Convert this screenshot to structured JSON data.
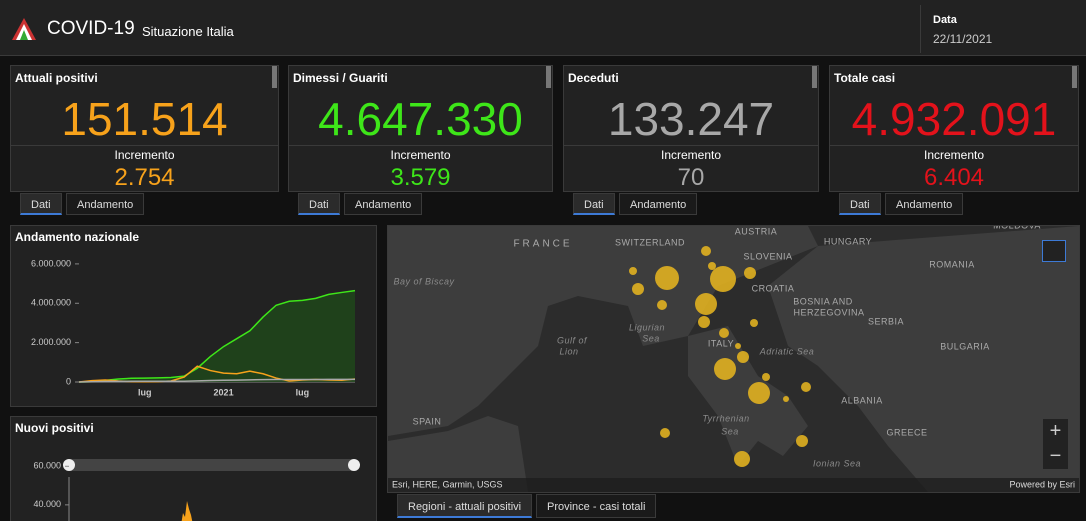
{
  "header": {
    "title": "COVID-19",
    "subtitle": "Situazione Italia",
    "date_label": "Data",
    "date": "22/11/2021"
  },
  "cards": [
    {
      "title": "Attuali positivi",
      "value": "151.514",
      "increment_label": "Incremento",
      "increment": "2.754",
      "color": "#f7a21b",
      "tabs": [
        "Dati",
        "Andamento"
      ]
    },
    {
      "title": "Dimessi / Guariti",
      "value": "4.647.330",
      "increment_label": "Incremento",
      "increment": "3.579",
      "color": "#3ee619",
      "tabs": [
        "Dati",
        "Andamento"
      ]
    },
    {
      "title": "Deceduti",
      "value": "133.247",
      "increment_label": "Incremento",
      "increment": "70",
      "color": "#a8a8a8",
      "tabs": [
        "Dati",
        "Andamento"
      ]
    },
    {
      "title": "Totale casi",
      "value": "4.932.091",
      "increment_label": "Incremento",
      "increment": "6.404",
      "color": "#e3121b",
      "tabs": [
        "Dati",
        "Andamento"
      ]
    }
  ],
  "chart_data": [
    {
      "type": "line",
      "title": "Andamento nazionale",
      "categories": [
        null,
        null,
        null,
        null,
        null,
        "lug",
        null,
        null,
        null,
        null,
        null,
        "2021",
        null,
        null,
        null,
        null,
        null,
        "lug",
        null,
        null,
        null,
        null
      ],
      "ylim": [
        0,
        6300000
      ],
      "yticks": [
        {
          "value": 0,
          "label": "0"
        },
        {
          "value": 2000000,
          "label": "2.000.000"
        },
        {
          "value": 4000000,
          "label": "4.000.000"
        },
        {
          "value": 6000000,
          "label": "6.000.000"
        }
      ],
      "series": [
        {
          "color": "#3ee619",
          "fill": "#1f4a1a",
          "values": [
            0,
            10000,
            80000,
            150000,
            190000,
            200000,
            210000,
            230000,
            300000,
            700000,
            1300000,
            1800000,
            2200000,
            2600000,
            3300000,
            3900000,
            4100000,
            4150000,
            4250000,
            4450000,
            4550000,
            4640000
          ]
        },
        {
          "color": "#f7a21b",
          "values": [
            0,
            70000,
            100000,
            50000,
            20000,
            13000,
            20000,
            50000,
            250000,
            800000,
            580000,
            450000,
            420000,
            550000,
            420000,
            200000,
            50000,
            100000,
            130000,
            100000,
            90000,
            150000
          ]
        },
        {
          "color": "#a8a8a8",
          "values": [
            0,
            12000,
            28000,
            33000,
            35000,
            35000,
            35500,
            36000,
            39000,
            55000,
            75000,
            90000,
            97000,
            108000,
            120000,
            126000,
            127500,
            128000,
            129000,
            131000,
            132000,
            133000
          ]
        }
      ]
    },
    {
      "type": "bar",
      "title": "Nuovi positivi",
      "ylim": [
        0,
        70000
      ],
      "yticks": [
        {
          "value": 40000,
          "label": "40.000"
        },
        {
          "value": 60000,
          "label": "60.000"
        }
      ]
    }
  ],
  "map": {
    "labels": [
      "FRANCE",
      "SWITZERLAND",
      "AUSTRIA",
      "SLOVENIA",
      "HUNGARY",
      "ROMANIA",
      "CROATIA",
      "BOSNIA AND",
      "HERZEGOVINA",
      "SERBIA",
      "BULGARIA",
      "ITALY",
      "Adriatic Sea",
      "Ligurian",
      "Sea",
      "Gulf of",
      "Lion",
      "Bay of Biscay",
      "SPAIN",
      "Tyrrhenian",
      "Sea",
      "ALBANIA",
      "GREECE",
      "Ionian Sea",
      "MOLDOVA"
    ],
    "attribution": "Esri, HERE, Garmin, USGS",
    "powered": "Powered by Esri",
    "tabs": [
      "Regioni - attuali positivi",
      "Province - casi totali"
    ]
  }
}
